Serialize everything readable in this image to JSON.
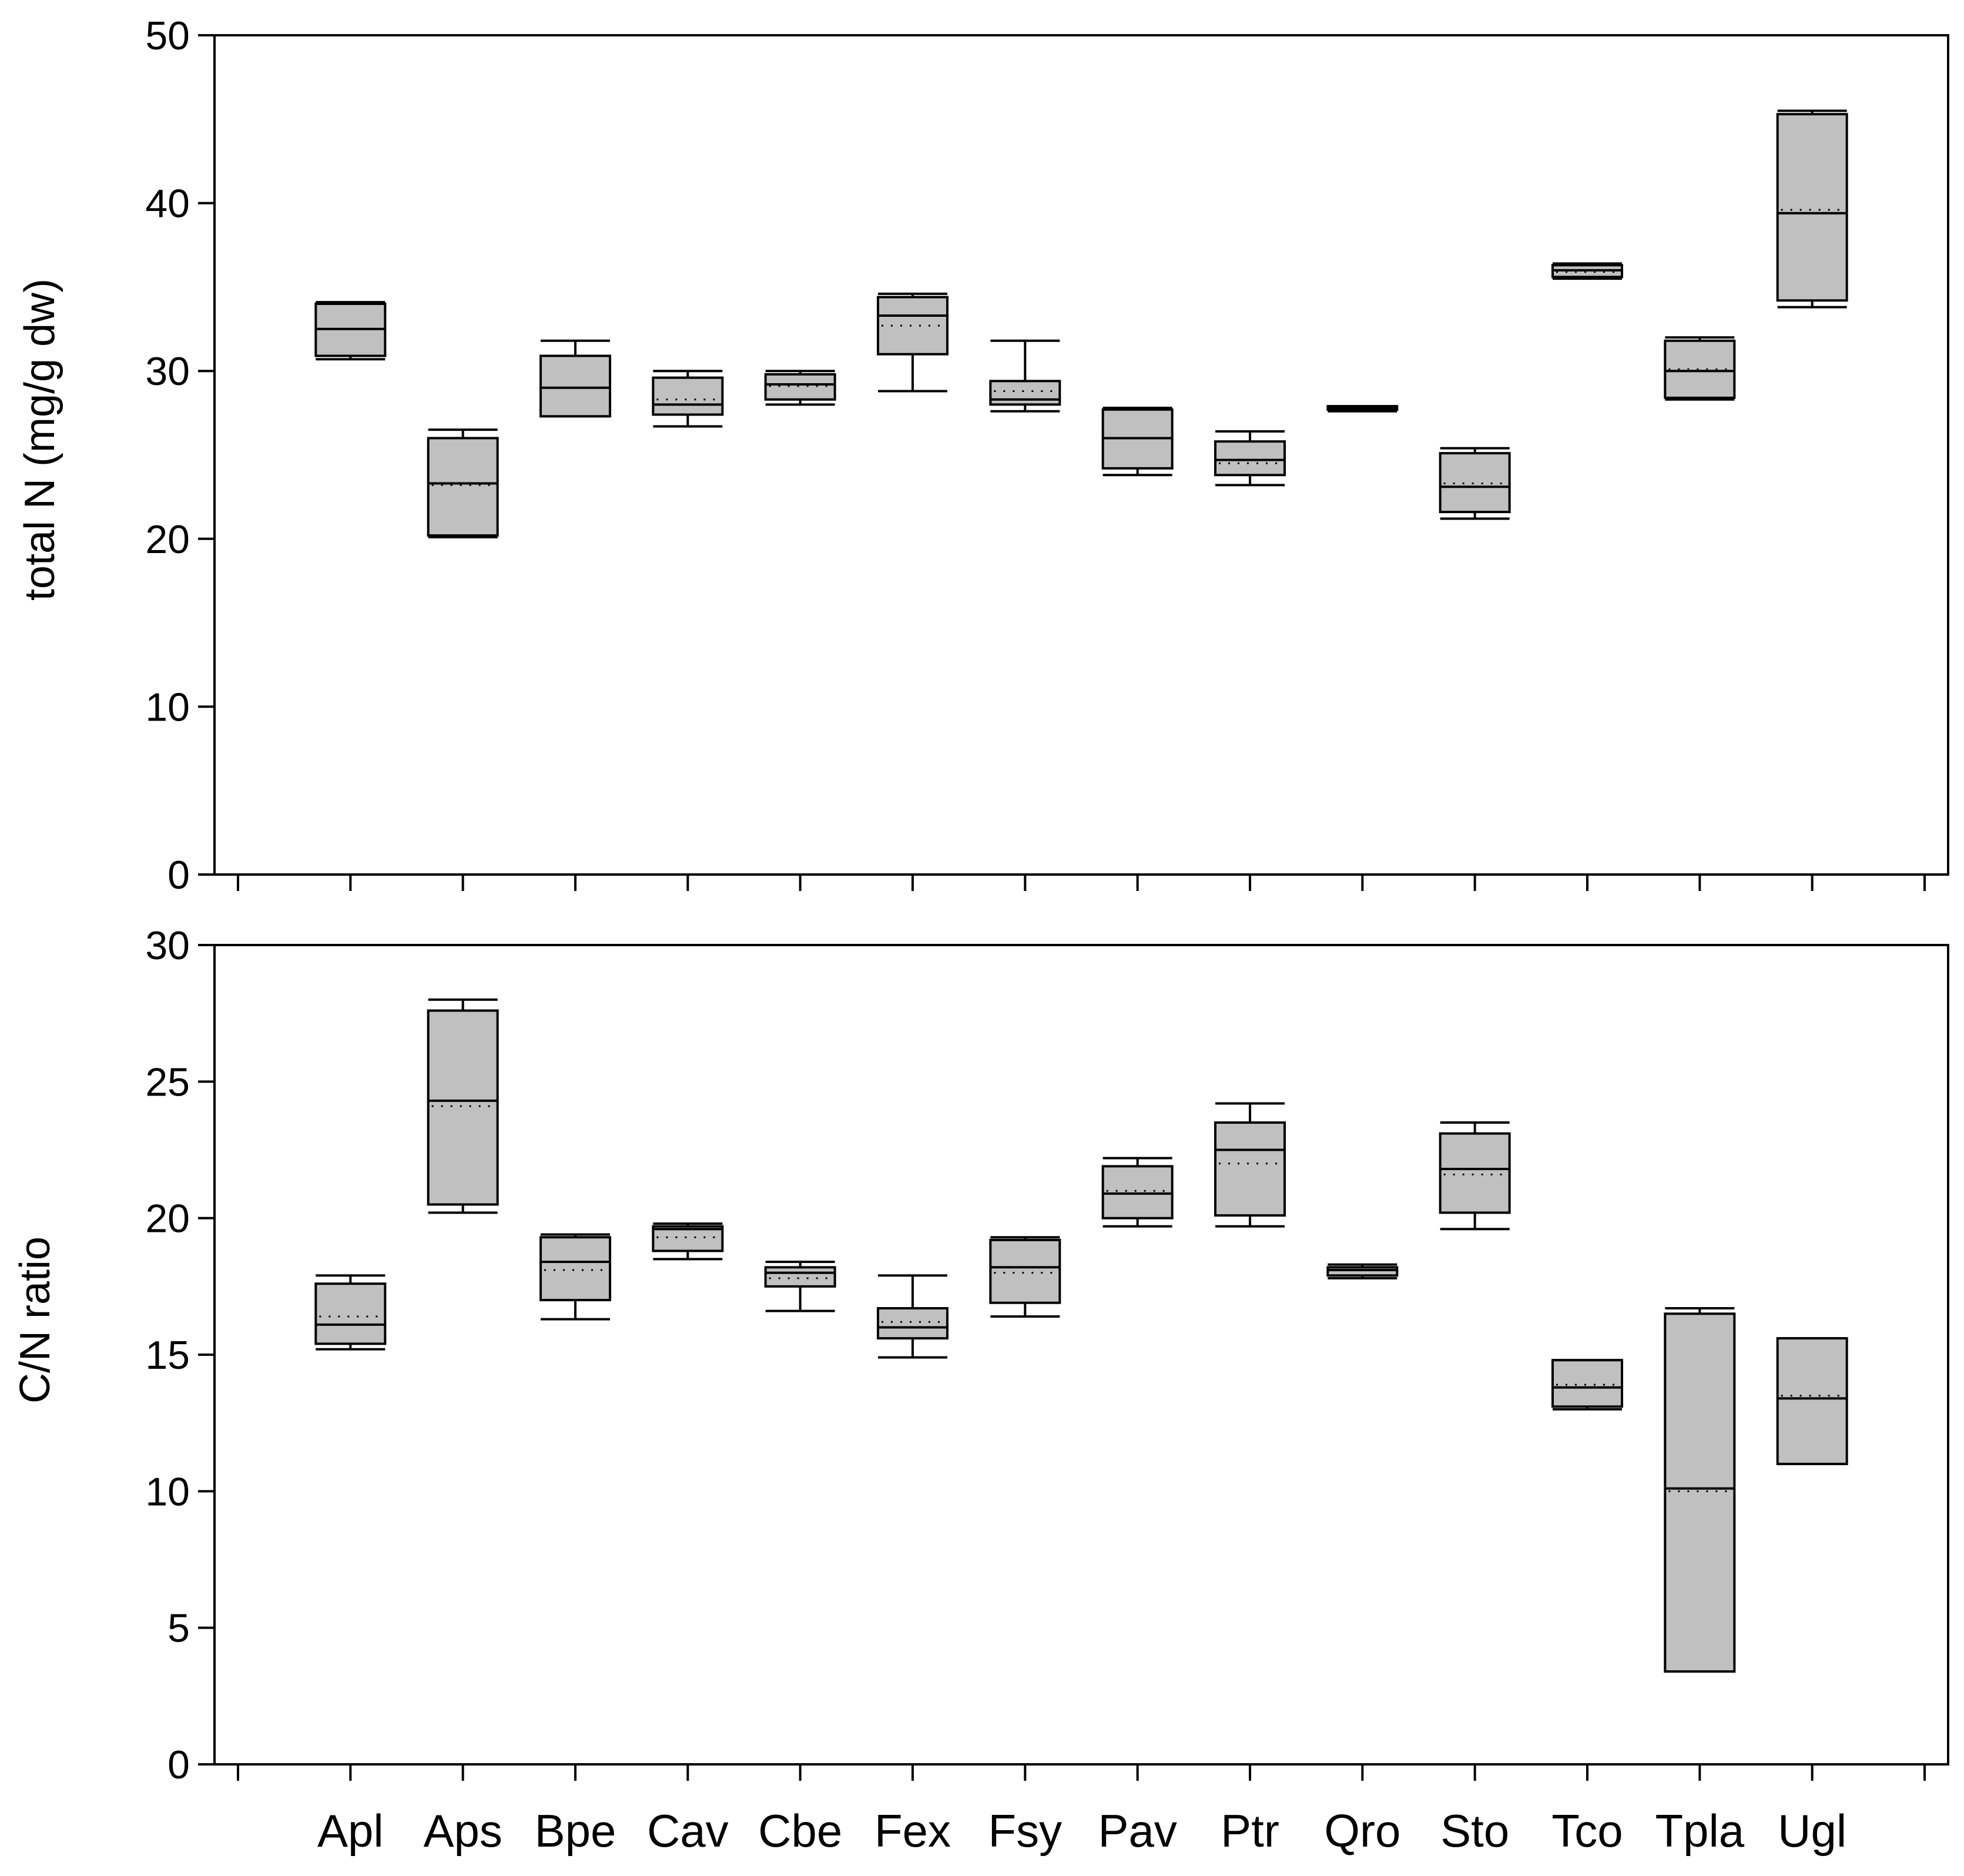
{
  "chart_data": {
    "type": "box",
    "categories": [
      "Apl",
      "Aps",
      "Bpe",
      "Cav",
      "Cbe",
      "Fex",
      "Fsy",
      "Pav",
      "Ptr",
      "Qro",
      "Sto",
      "Tco",
      "Tpla",
      "Ugl"
    ],
    "panels": [
      {
        "name": "total-n",
        "ylabel": "total N (mg/g dw)",
        "ylim": [
          0,
          50
        ],
        "yticks": [
          "0",
          "10",
          "20",
          "30",
          "40",
          "50"
        ],
        "boxes": [
          {
            "min": 30.7,
            "q1": 30.9,
            "median": 32.5,
            "mean": 32.5,
            "q3": 34.0,
            "max": 34.1
          },
          {
            "min": 20.1,
            "q1": 20.2,
            "median": 23.3,
            "mean": 23.2,
            "q3": 26.0,
            "max": 26.5
          },
          {
            "min": 27.3,
            "q1": 27.3,
            "median": 29.0,
            "mean": 29.0,
            "q3": 30.9,
            "max": 31.8
          },
          {
            "min": 26.7,
            "q1": 27.4,
            "median": 28.0,
            "mean": 28.3,
            "q3": 29.6,
            "max": 30.0
          },
          {
            "min": 28.0,
            "q1": 28.3,
            "median": 29.2,
            "mean": 29.1,
            "q3": 29.8,
            "max": 30.0
          },
          {
            "min": 28.8,
            "q1": 31.0,
            "median": 33.3,
            "mean": 32.7,
            "q3": 34.4,
            "max": 34.6
          },
          {
            "min": 27.6,
            "q1": 28.0,
            "median": 28.3,
            "mean": 28.8,
            "q3": 29.4,
            "max": 31.8
          },
          {
            "min": 23.8,
            "q1": 24.2,
            "median": 26.0,
            "mean": 26.0,
            "q3": 27.7,
            "max": 27.8
          },
          {
            "min": 23.2,
            "q1": 23.8,
            "median": 24.7,
            "mean": 24.5,
            "q3": 25.8,
            "max": 26.4
          },
          {
            "min": 27.6,
            "q1": 27.7,
            "median": 27.8,
            "mean": 27.8,
            "q3": 27.9,
            "max": 27.9
          },
          {
            "min": 21.2,
            "q1": 21.6,
            "median": 23.1,
            "mean": 23.3,
            "q3": 25.1,
            "max": 25.4
          },
          {
            "min": 35.5,
            "q1": 35.6,
            "median": 36.0,
            "mean": 35.9,
            "q3": 36.3,
            "max": 36.4
          },
          {
            "min": 28.3,
            "q1": 28.4,
            "median": 30.0,
            "mean": 30.1,
            "q3": 31.8,
            "max": 32.0
          },
          {
            "min": 33.8,
            "q1": 34.2,
            "median": 39.4,
            "mean": 39.6,
            "q3": 45.3,
            "max": 45.5
          }
        ]
      },
      {
        "name": "cn-ratio",
        "ylabel": "C/N ratio",
        "ylim": [
          0,
          30
        ],
        "yticks": [
          "0",
          "5",
          "10",
          "15",
          "20",
          "25",
          "30"
        ],
        "boxes": [
          {
            "min": 15.2,
            "q1": 15.4,
            "median": 16.1,
            "mean": 16.4,
            "q3": 17.6,
            "max": 17.9
          },
          {
            "min": 20.2,
            "q1": 20.5,
            "median": 24.3,
            "mean": 24.1,
            "q3": 27.6,
            "max": 28.0
          },
          {
            "min": 16.3,
            "q1": 17.0,
            "median": 18.4,
            "mean": 18.1,
            "q3": 19.3,
            "max": 19.4
          },
          {
            "min": 18.5,
            "q1": 18.8,
            "median": 19.6,
            "mean": 19.3,
            "q3": 19.7,
            "max": 19.8
          },
          {
            "min": 16.6,
            "q1": 17.5,
            "median": 18.0,
            "mean": 17.8,
            "q3": 18.2,
            "max": 18.4
          },
          {
            "min": 14.9,
            "q1": 15.6,
            "median": 16.0,
            "mean": 16.2,
            "q3": 16.7,
            "max": 17.9
          },
          {
            "min": 16.4,
            "q1": 16.9,
            "median": 18.2,
            "mean": 18.0,
            "q3": 19.2,
            "max": 19.3
          },
          {
            "min": 19.7,
            "q1": 20.0,
            "median": 20.9,
            "mean": 21.0,
            "q3": 21.9,
            "max": 22.2
          },
          {
            "min": 19.7,
            "q1": 20.1,
            "median": 22.5,
            "mean": 22.0,
            "q3": 23.5,
            "max": 24.2
          },
          {
            "min": 17.8,
            "q1": 17.9,
            "median": 18.1,
            "mean": 18.1,
            "q3": 18.2,
            "max": 18.3
          },
          {
            "min": 19.6,
            "q1": 20.2,
            "median": 21.8,
            "mean": 21.6,
            "q3": 23.1,
            "max": 23.5
          },
          {
            "min": 13.0,
            "q1": 13.1,
            "median": 13.8,
            "mean": 13.9,
            "q3": 14.8,
            "max": 14.8
          },
          {
            "min": 3.4,
            "q1": 3.4,
            "median": 10.1,
            "mean": 10.0,
            "q3": 16.5,
            "max": 16.7
          },
          {
            "min": 11.0,
            "q1": 11.0,
            "median": 13.4,
            "mean": 13.5,
            "q3": 15.6,
            "max": 15.6
          }
        ]
      }
    ]
  },
  "colors": {
    "box_fill": "#c0c0c0",
    "stroke": "#000000",
    "background": "#ffffff"
  }
}
